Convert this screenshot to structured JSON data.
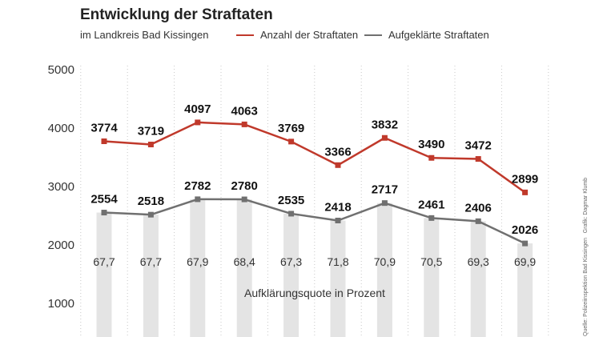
{
  "chart_data": {
    "type": "line",
    "title": "Entwicklung der Straftaten",
    "subtitle": "im Landkreis Bad Kissingen",
    "ylim": [
      0,
      5000
    ],
    "yticks": [
      1000,
      2000,
      3000,
      4000,
      5000
    ],
    "grid": "vertical-dotted",
    "categories": [
      "",
      "",
      "",
      "",
      "",
      "",
      "",
      "",
      "",
      ""
    ],
    "series": [
      {
        "name": "Anzahl der Straftaten",
        "color": "#c0392b",
        "values": [
          3774,
          3719,
          4097,
          4063,
          3769,
          3366,
          3832,
          3490,
          3472,
          2899
        ]
      },
      {
        "name": "Aufgeklärte Straftaten",
        "color": "#707070",
        "values": [
          2554,
          2518,
          2782,
          2780,
          2535,
          2418,
          2717,
          2461,
          2406,
          2026
        ]
      }
    ],
    "quote_labels": [
      "67,7",
      "67,7",
      "67,9",
      "68,4",
      "67,3",
      "71,8",
      "70,9",
      "70,5",
      "69,3",
      "69,9"
    ],
    "quote_caption": "Aufklärungsquote in Prozent",
    "credit": "Grafik: Dagmar Klumb",
    "source": "Quelle: Polizeiinspektion Bad Kissingen"
  }
}
